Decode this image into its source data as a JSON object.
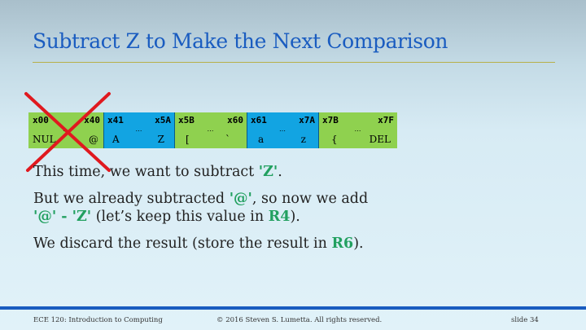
{
  "slide": {
    "title": "Subtract Z to Make the Next Comparison"
  },
  "ascii_table": {
    "segments": [
      {
        "top_left": "x00",
        "top_right": "x40",
        "bottom_left": "NUL",
        "bottom_right": "@",
        "dots": "…",
        "color": "#8fd14f"
      },
      {
        "top_left": "x41",
        "top_right": "x5A",
        "bottom_left": "A",
        "bottom_right": "Z",
        "dots": "…",
        "color": "#12a4e2"
      },
      {
        "top_left": "x5B",
        "top_right": "x60",
        "bottom_left": "[",
        "bottom_right": "`",
        "dots": "…",
        "color": "#8fd14f"
      },
      {
        "top_left": "x61",
        "top_right": "x7A",
        "bottom_left": "a",
        "bottom_right": "z",
        "dots": "…",
        "color": "#12a4e2"
      },
      {
        "top_left": "x7B",
        "top_right": "x7F",
        "bottom_left": "{",
        "bottom_right": "DEL",
        "dots": "…",
        "color": "#8fd14f"
      }
    ],
    "cross_out_color": "#e0191f"
  },
  "body": {
    "line1": {
      "before": "This time, we want to subtract ",
      "hl": "'Z'",
      "after": "."
    },
    "line2": {
      "before": "But we already subtracted ",
      "hl": "'@'",
      "after": ", so now we add"
    },
    "line3": {
      "hl1": "'@' - 'Z'",
      "mid": " (let’s keep this value in ",
      "hl2": "R4",
      "after": ")."
    },
    "line4": {
      "before": "We discard the result (store the result in ",
      "hl": "R6",
      "after": ")."
    }
  },
  "footer": {
    "course": "ECE 120: Introduction to Computing",
    "copyright": "© 2016 Steven S. Lumetta.  All rights reserved.",
    "slide_number": "slide 34"
  },
  "colors": {
    "title": "#1a5cc0",
    "highlight": "#22a060",
    "footer_bar": "#1a5cc0",
    "rule": "#b7b04a"
  }
}
